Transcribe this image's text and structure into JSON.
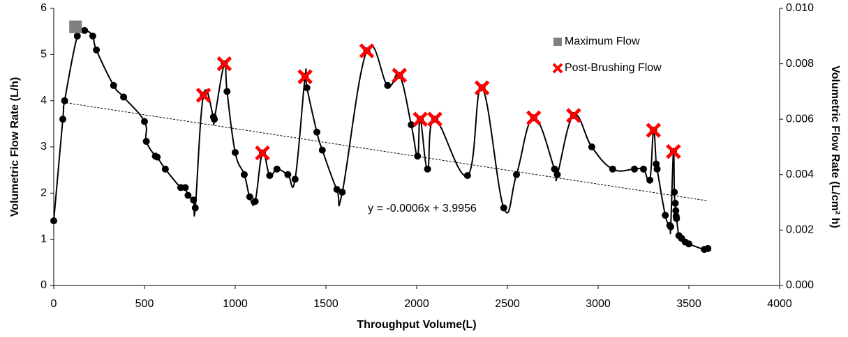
{
  "chart_data": {
    "type": "scatter",
    "xlabel": "Throughput Volume(L)",
    "ylabel": "Volumetric Flow Rate (L/h)",
    "y2label": "Volumetric Flow Rate (L/cm² h)",
    "xlim": [
      0,
      4000
    ],
    "xticks": [
      0,
      500,
      1000,
      1500,
      2000,
      2500,
      3000,
      3500,
      4000
    ],
    "ylim": [
      0,
      6
    ],
    "yticks": [
      0,
      1,
      2,
      3,
      4,
      5,
      6
    ],
    "y2lim": [
      0,
      0.01
    ],
    "y2ticks": [
      {
        "value": 0,
        "label": "0.000"
      },
      0.002,
      0.004,
      0.006,
      0.008,
      {
        "value": 0.01,
        "label": "0.010"
      }
    ],
    "grid": false,
    "legend": "upper right",
    "series": [
      {
        "color": "#000000",
        "marker": "circle",
        "smooth": true,
        "x": [
          0,
          50,
          60,
          130,
          170,
          215,
          235,
          330,
          385,
          500,
          510,
          560,
          570,
          615,
          700,
          725,
          740,
          770,
          780,
          825,
          880,
          885,
          940,
          955,
          1000,
          1050,
          1080,
          1110,
          1150,
          1190,
          1230,
          1290,
          1330,
          1385,
          1395,
          1450,
          1480,
          1560,
          1590,
          1725,
          1840,
          1905,
          1970,
          2005,
          2020,
          2060,
          2100,
          2280,
          2360,
          2480,
          2550,
          2645,
          2760,
          2775,
          2865,
          2965,
          3080,
          3200,
          3250,
          3285,
          3305,
          3320,
          3325,
          3370,
          3395,
          3400,
          3415,
          3420,
          3425,
          3428,
          3430,
          3432,
          3445,
          3460,
          3480,
          3500,
          3585,
          3605
        ],
        "values": [
          1.4,
          3.6,
          4.0,
          5.4,
          5.52,
          5.4,
          5.1,
          4.33,
          4.08,
          3.55,
          3.12,
          2.8,
          2.78,
          2.52,
          2.12,
          2.12,
          1.95,
          1.85,
          1.68,
          4.12,
          3.65,
          3.6,
          4.8,
          4.2,
          2.88,
          2.4,
          1.92,
          1.82,
          2.87,
          2.38,
          2.52,
          2.4,
          2.3,
          4.52,
          4.28,
          3.32,
          2.93,
          2.08,
          2.02,
          5.08,
          4.33,
          4.55,
          3.48,
          2.8,
          3.6,
          2.52,
          3.6,
          2.38,
          4.28,
          1.68,
          2.4,
          3.63,
          2.52,
          2.4,
          3.68,
          3.0,
          2.52,
          2.52,
          2.52,
          2.28,
          3.36,
          2.63,
          2.52,
          1.52,
          1.3,
          1.27,
          2.9,
          2.02,
          1.78,
          1.62,
          1.5,
          1.45,
          1.08,
          1.02,
          0.94,
          0.9,
          0.78,
          0.8
        ]
      },
      {
        "name": "Maximum Flow",
        "color": "#808080",
        "marker": "square",
        "x": [
          120
        ],
        "values": [
          5.6
        ]
      },
      {
        "name": "Post-Brushing Flow",
        "color": "#ff0000",
        "marker": "x",
        "x": [
          825,
          940,
          1150,
          1385,
          1725,
          1905,
          2020,
          2100,
          2360,
          2645,
          2865,
          3305,
          3415
        ],
        "values": [
          4.12,
          4.8,
          2.87,
          4.52,
          5.08,
          4.55,
          3.6,
          3.6,
          4.28,
          3.63,
          3.68,
          3.36,
          2.9
        ]
      }
    ],
    "trendline": {
      "label": "y = -0.0006x + 3.9956",
      "slope": -0.0006,
      "intercept": 3.9956,
      "x": [
        50,
        3600
      ]
    }
  }
}
